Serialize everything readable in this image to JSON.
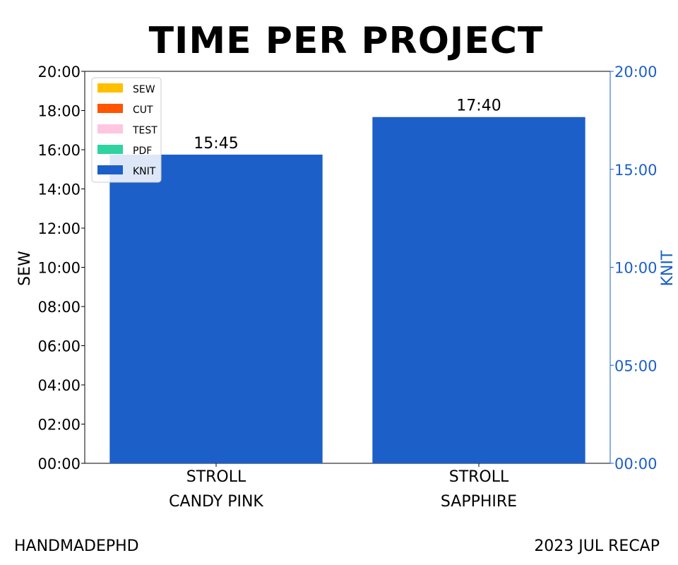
{
  "chart_data": {
    "type": "bar",
    "title": "TIME PER PROJECT",
    "categories": [
      [
        "STROLL",
        "CANDY PINK"
      ],
      [
        "STROLL",
        "SAPPHIRE"
      ]
    ],
    "series": [
      {
        "name": "SEW",
        "color": "#ffc000",
        "values": [
          0,
          0
        ]
      },
      {
        "name": "CUT",
        "color": "#ff5500",
        "values": [
          0,
          0
        ]
      },
      {
        "name": "TEST",
        "color": "#ffc6e0",
        "values": [
          0,
          0
        ]
      },
      {
        "name": "PDF",
        "color": "#2ed3a0",
        "values": [
          0,
          0
        ]
      },
      {
        "name": "KNIT",
        "color": "#1c5fc8",
        "values": [
          15.75,
          17.6667
        ]
      }
    ],
    "data_labels": [
      "15:45",
      "17:40"
    ],
    "ylabel_left": "SEW",
    "ylabel_right": "KNIT",
    "ylim_left": [
      0,
      20
    ],
    "ylim_right": [
      0,
      20
    ],
    "yticks_left": [
      "00:00",
      "02:00",
      "04:00",
      "06:00",
      "08:00",
      "10:00",
      "12:00",
      "14:00",
      "16:00",
      "18:00",
      "20:00"
    ],
    "yticks_right": [
      "00:00",
      "05:00",
      "10:00",
      "15:00",
      "20:00"
    ],
    "right_axis_color": "#1c5fc8",
    "legend_position": "top-left",
    "grid": false
  },
  "footer": {
    "left": "HANDMADEPHD",
    "right": "2023 JUL RECAP"
  }
}
